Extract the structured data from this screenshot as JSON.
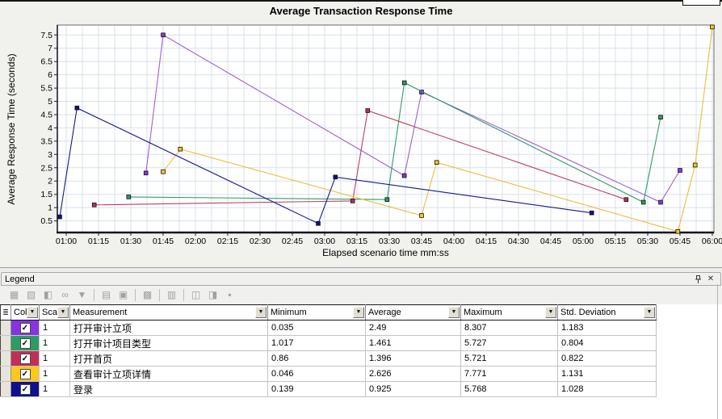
{
  "chart_data": {
    "type": "line",
    "title": "Average Transaction Response Time",
    "xlabel": "Elapsed scenario time mm:ss",
    "ylabel": "Average Response Time (seconds)",
    "x_unit_seconds": true,
    "xlim_seconds": [
      56,
      361
    ],
    "ylim": [
      0,
      7.87
    ],
    "x_tick_interval_seconds": 15,
    "x_ticks": [
      "01:00",
      "01:15",
      "01:30",
      "01:45",
      "02:00",
      "02:15",
      "02:30",
      "02:45",
      "03:00",
      "03:15",
      "03:30",
      "03:45",
      "04:00",
      "04:15",
      "04:30",
      "04:45",
      "05:00",
      "05:15",
      "05:30",
      "05:45",
      "06:00"
    ],
    "y_ticks": [
      0.5,
      1,
      1.5,
      2,
      2.5,
      3,
      3.5,
      4,
      4.5,
      5,
      5.5,
      6,
      6.5,
      7,
      7.5
    ],
    "grid": true,
    "grid_color": "#d7e0ed",
    "legend_position": "bottom-panel",
    "series": [
      {
        "name": "打开审计立项",
        "color": "#8733E2",
        "line_color": "#9D5FD3",
        "points": [
          [
            97,
            2.3
          ],
          [
            105,
            7.5
          ],
          [
            217,
            2.2
          ],
          [
            225,
            5.35
          ],
          [
            336,
            1.2
          ],
          [
            345,
            2.4
          ]
        ]
      },
      {
        "name": "打开审计项目类型",
        "color": "#2D9B63",
        "line_color": "#2E9B68",
        "points": [
          [
            89,
            1.4
          ],
          [
            209,
            1.3
          ],
          [
            217,
            5.7
          ],
          [
            328,
            1.2
          ],
          [
            336,
            4.4
          ]
        ]
      },
      {
        "name": "打开首页",
        "color": "#C12F58",
        "line_color": "#BE3F62",
        "points": [
          [
            73,
            1.1
          ],
          [
            193,
            1.25
          ],
          [
            200,
            4.65
          ],
          [
            320,
            1.3
          ]
        ]
      },
      {
        "name": "查看审计立项详情",
        "color": "#FFC61B",
        "line_color": "#E9BE3C",
        "points": [
          [
            105,
            2.35
          ],
          [
            113,
            3.2
          ],
          [
            225,
            0.7
          ],
          [
            232,
            2.7
          ],
          [
            344,
            0.1
          ],
          [
            352,
            2.6
          ],
          [
            360,
            7.8
          ]
        ]
      },
      {
        "name": "登录",
        "color": "#10108E",
        "line_color": "#14168C",
        "points": [
          [
            57,
            0.65
          ],
          [
            65,
            4.75
          ],
          [
            177,
            0.4
          ],
          [
            185,
            2.15
          ],
          [
            304,
            0.8
          ]
        ]
      }
    ]
  },
  "legend": {
    "title": "Legend",
    "pin_label": "pin",
    "close_label": "✕",
    "toolbar": [
      {
        "name": "show-all-measurements-icon",
        "glyph": "▦"
      },
      {
        "name": "hide-all-measurements-icon",
        "glyph": "▧"
      },
      {
        "name": "show-selected-measurements-icon",
        "glyph": "◧"
      },
      {
        "name": "view-measurement-description-icon",
        "glyph": "∞"
      },
      {
        "name": "filter-measurements-icon",
        "glyph": "▼"
      },
      {
        "sep": true
      },
      {
        "name": "sort-measurements-icon",
        "glyph": "▤"
      },
      {
        "name": "copy-measurement-icon",
        "glyph": "▣"
      },
      {
        "sep": true
      },
      {
        "name": "configure-measurements-icon",
        "glyph": "▩"
      },
      {
        "sep": true
      },
      {
        "name": "column-options-icon",
        "glyph": "▥"
      },
      {
        "sep": true
      },
      {
        "name": "break-down-measurement-icon",
        "glyph": "◫"
      },
      {
        "name": "merge-measurements-icon",
        "glyph": "◨"
      },
      {
        "name": "save-legend-icon",
        "glyph": "▪"
      }
    ],
    "table": {
      "headers": {
        "selector": "≣",
        "color": "Col",
        "scale": "Sca",
        "measurement": "Measurement",
        "minimum": "Minimum",
        "average": "Average",
        "maximum": "Maximum",
        "std_deviation": "Std. Deviation"
      },
      "rows": [
        {
          "checked": true,
          "color": "#8733E2",
          "scale": "1",
          "measurement": "打开审计立项",
          "minimum": "0.035",
          "average": "2.49",
          "maximum": "8.307",
          "std_deviation": "1.183"
        },
        {
          "checked": true,
          "color": "#2D9B63",
          "scale": "1",
          "measurement": "打开审计项目类型",
          "minimum": "1.017",
          "average": "1.461",
          "maximum": "5.727",
          "std_deviation": "0.804"
        },
        {
          "checked": true,
          "color": "#C12F58",
          "scale": "1",
          "measurement": "打开首页",
          "minimum": "0.86",
          "average": "1.396",
          "maximum": "5.721",
          "std_deviation": "0.822"
        },
        {
          "checked": true,
          "color": "#FFC61B",
          "scale": "1",
          "measurement": "查看审计立项详情",
          "minimum": "0.046",
          "average": "2.626",
          "maximum": "7.771",
          "std_deviation": "1.131"
        },
        {
          "checked": true,
          "color": "#10108E",
          "scale": "1",
          "measurement": "登录",
          "minimum": "0.139",
          "average": "0.925",
          "maximum": "5.768",
          "std_deviation": "1.028"
        }
      ]
    }
  }
}
